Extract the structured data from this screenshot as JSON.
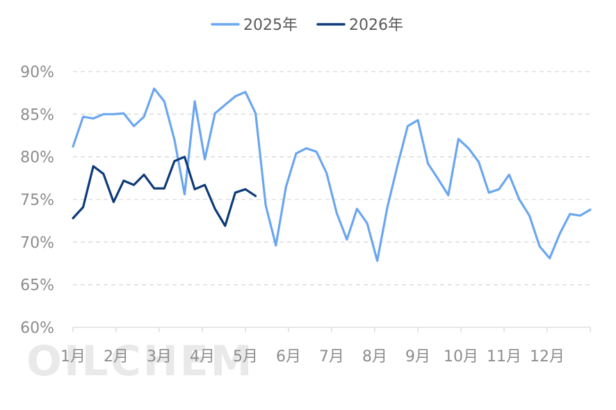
{
  "watermark": "OILCHEM",
  "chart_data": {
    "type": "line",
    "title": "",
    "xlabel": "",
    "ylabel": "",
    "ylim": [
      0.6,
      0.9
    ],
    "y_ticks": [
      "60%",
      "65%",
      "70%",
      "75%",
      "80%",
      "85%",
      "90%"
    ],
    "y_tick_values": [
      0.6,
      0.65,
      0.7,
      0.75,
      0.8,
      0.85,
      0.9
    ],
    "x_tick_labels": [
      "1月",
      "2月",
      "3月",
      "4月",
      "5月",
      "6月",
      "7月",
      "8月",
      "9月",
      "10月",
      "11月",
      "12月"
    ],
    "grid": true,
    "legend_position": "top-center",
    "series": [
      {
        "name": "2025年",
        "color": "#6aa6f0",
        "values": [
          0.812,
          0.847,
          0.845,
          0.85,
          0.85,
          0.851,
          0.836,
          0.847,
          0.88,
          0.865,
          0.82,
          0.756,
          0.865,
          0.797,
          0.851,
          0.861,
          0.871,
          0.876,
          0.851,
          0.743,
          0.696,
          0.765,
          0.804,
          0.81,
          0.806,
          0.781,
          0.734,
          0.703,
          0.739,
          0.722,
          0.678,
          0.741,
          0.79,
          0.836,
          0.843,
          0.792,
          0.774,
          0.755,
          0.821,
          0.81,
          0.794,
          0.758,
          0.762,
          0.779,
          0.75,
          0.731,
          0.695,
          0.681,
          0.71,
          0.733,
          0.731,
          0.738
        ]
      },
      {
        "name": "2026年",
        "color": "#0d3a78",
        "values": [
          0.728,
          0.741,
          0.789,
          0.78,
          0.747,
          0.772,
          0.767,
          0.779,
          0.763,
          0.763,
          0.795,
          0.8,
          0.762,
          0.767,
          0.739,
          0.719,
          0.758,
          0.762,
          0.754
        ]
      }
    ]
  }
}
